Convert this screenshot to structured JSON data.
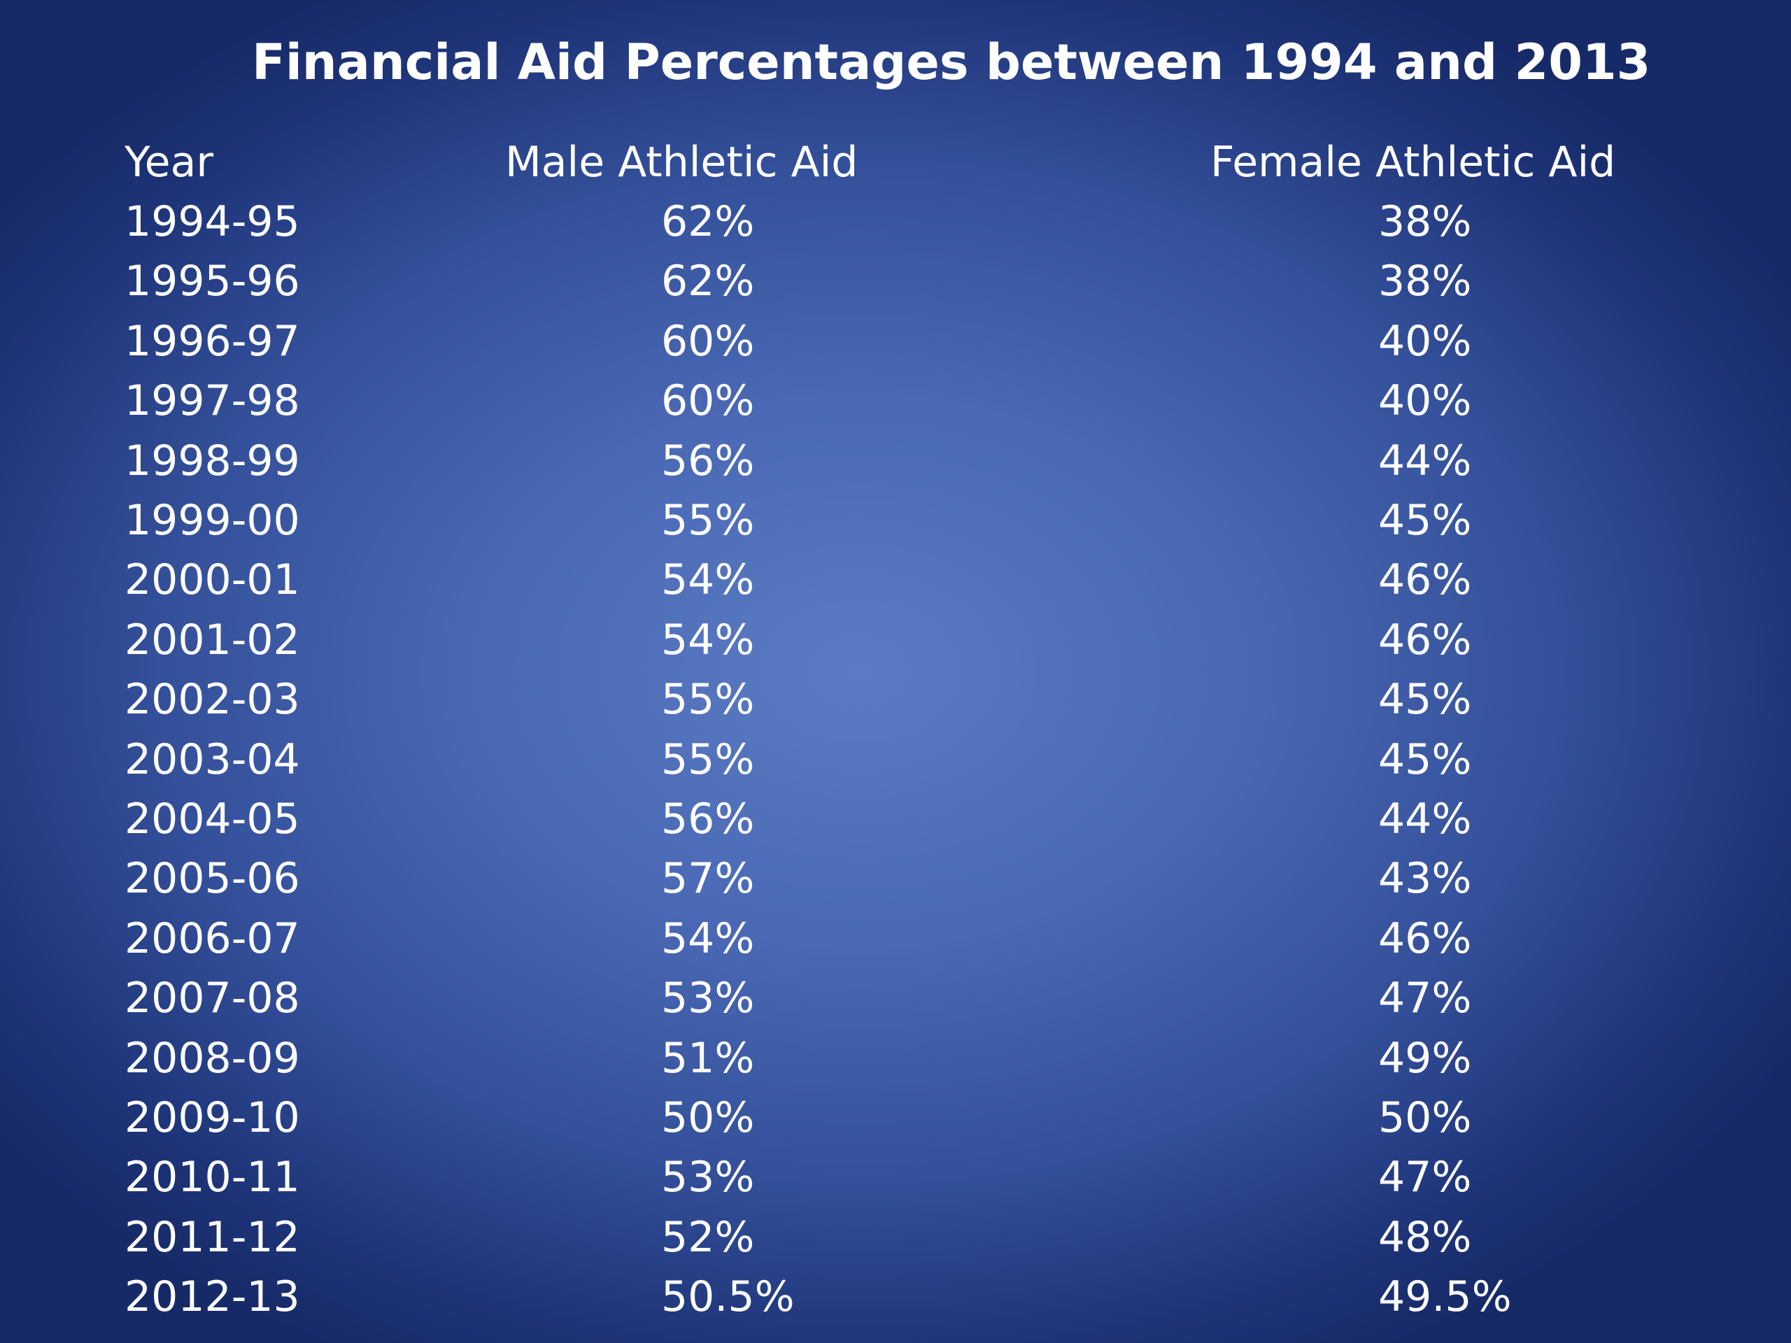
{
  "title": "Financial Aid Percentages between 1994 and 2013",
  "chart_data": {
    "type": "table",
    "title": "Financial Aid Percentages between 1994 and 2013",
    "columns": [
      "Year",
      "Male Athletic Aid",
      "Female Athletic Aid"
    ],
    "rows": [
      {
        "year": "1994-95",
        "male": "62%",
        "female": "38%"
      },
      {
        "year": "1995-96",
        "male": "62%",
        "female": "38%"
      },
      {
        "year": "1996-97",
        "male": "60%",
        "female": "40%"
      },
      {
        "year": "1997-98",
        "male": "60%",
        "female": "40%"
      },
      {
        "year": "1998-99",
        "male": "56%",
        "female": "44%"
      },
      {
        "year": "1999-00",
        "male": "55%",
        "female": "45%"
      },
      {
        "year": "2000-01",
        "male": "54%",
        "female": "46%"
      },
      {
        "year": "2001-02",
        "male": "54%",
        "female": "46%"
      },
      {
        "year": "2002-03",
        "male": "55%",
        "female": "45%"
      },
      {
        "year": "2003-04",
        "male": "55%",
        "female": "45%"
      },
      {
        "year": "2004-05",
        "male": "56%",
        "female": "44%"
      },
      {
        "year": "2005-06",
        "male": "57%",
        "female": "43%"
      },
      {
        "year": "2006-07",
        "male": "54%",
        "female": "46%"
      },
      {
        "year": "2007-08",
        "male": "53%",
        "female": "47%"
      },
      {
        "year": "2008-09",
        "male": "51%",
        "female": "49%"
      },
      {
        "year": "2009-10",
        "male": "50%",
        "female": "50%"
      },
      {
        "year": "2010-11",
        "male": "53%",
        "female": "47%"
      },
      {
        "year": "2011-12",
        "male": "52%",
        "female": "48%"
      },
      {
        "year": "2012-13",
        "male": "50.5%",
        "female": "49.5%"
      }
    ]
  },
  "colors": {
    "text": "#ffffff",
    "background_center": "#5b7cc4",
    "background_edge": "#172a68"
  }
}
